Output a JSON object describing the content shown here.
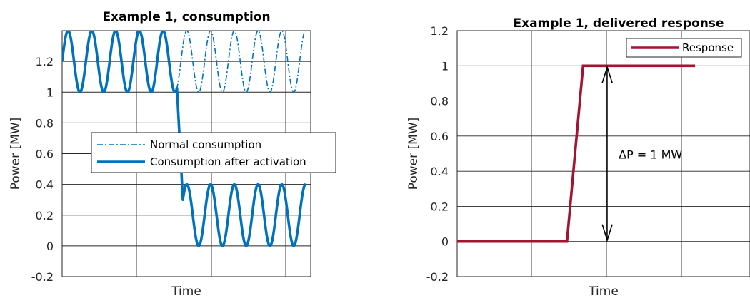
{
  "chart_data": [
    {
      "type": "line",
      "title": "Example 1, consumption",
      "xlabel": "Time",
      "ylabel": "Power [MW]",
      "xlim": [
        0,
        6.28
      ],
      "ylim": [
        -0.2,
        1.4
      ],
      "yticks": [
        -0.2,
        0,
        0.2,
        0.4,
        0.6,
        0.8,
        1,
        1.2
      ],
      "ytick_labels": [
        "-0.2",
        "0",
        "0.2",
        "0.4",
        "0.6",
        "0.8",
        "1",
        "1.2"
      ],
      "x_tick_labels_shown": false,
      "grid": true,
      "legend_position": "center-left",
      "series": [
        {
          "name": "Normal consumption",
          "style": "dash-dot",
          "color": "#0072BD",
          "description": "sinusoid between 1.0 and 1.4 MW, period about 0.6 time units",
          "amplitude": 0.2,
          "offset": 1.2,
          "period": 0.6,
          "x_range": [
            0,
            6.15
          ]
        },
        {
          "name": "Consumption after activation",
          "style": "solid-thick",
          "color": "#0072BD",
          "description": "same oscillation 1.0–1.4 MW until about x=2.9, then drop to oscillation between 0 and 0.4 MW",
          "before": {
            "amplitude": 0.2,
            "offset": 1.2,
            "period": 0.6,
            "x_range": [
              0,
              2.9
            ]
          },
          "after": {
            "amplitude": 0.2,
            "offset": 0.2,
            "period": 0.6,
            "x_range": [
              3.05,
              6.15
            ]
          }
        }
      ]
    },
    {
      "type": "line",
      "title": "Example 1, delivered response",
      "xlabel": "Time",
      "ylabel": "Power [MW]",
      "xlim": [
        0,
        4
      ],
      "ylim": [
        -0.2,
        1.2
      ],
      "yticks": [
        -0.2,
        0,
        0.2,
        0.4,
        0.6,
        0.8,
        1,
        1.2
      ],
      "ytick_labels": [
        "-0.2",
        "0",
        "0.2",
        "0.4",
        "0.6",
        "0.8",
        "1",
        "1.2"
      ],
      "x_tick_labels_shown": false,
      "grid": true,
      "legend_position": "top-right",
      "series": [
        {
          "name": "Response",
          "color": "#A2142F",
          "x": [
            0,
            1.5,
            1.72,
            3.25
          ],
          "y": [
            0,
            0,
            1,
            1
          ]
        }
      ],
      "annotation": {
        "text": "ΔP = 1 MW",
        "arrow_x": 2.05,
        "arrow_y": [
          0,
          1
        ]
      }
    }
  ]
}
